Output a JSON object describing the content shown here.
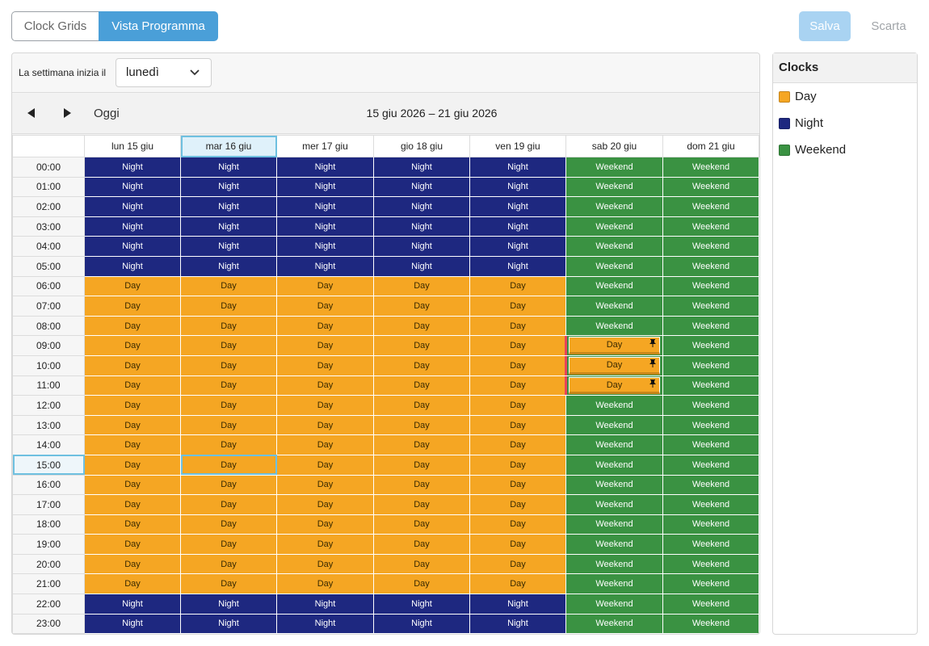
{
  "tabs": [
    {
      "label": "Clock Grids",
      "active": false
    },
    {
      "label": "Vista Programma",
      "active": true
    }
  ],
  "actions": {
    "save_label": "Salva",
    "discard_label": "Scarta"
  },
  "week_start": {
    "label": "La settimana inizia il",
    "value": "lunedì"
  },
  "nav": {
    "today_label": "Oggi",
    "range": "15 giu 2026 – 21 giu 2026"
  },
  "days": [
    "lun 15 giu",
    "mar 16 giu",
    "mer 17 giu",
    "gio 18 giu",
    "ven 19 giu",
    "sab 20 giu",
    "dom 21 giu"
  ],
  "hours": [
    "00:00",
    "01:00",
    "02:00",
    "03:00",
    "04:00",
    "05:00",
    "06:00",
    "07:00",
    "08:00",
    "09:00",
    "10:00",
    "11:00",
    "12:00",
    "13:00",
    "14:00",
    "15:00",
    "16:00",
    "17:00",
    "18:00",
    "19:00",
    "20:00",
    "21:00",
    "22:00",
    "23:00"
  ],
  "weekday_schedule": [
    "Night",
    "Night",
    "Night",
    "Night",
    "Night",
    "Night",
    "Day",
    "Day",
    "Day",
    "Day",
    "Day",
    "Day",
    "Day",
    "Day",
    "Day",
    "Day",
    "Day",
    "Day",
    "Day",
    "Day",
    "Day",
    "Day",
    "Night",
    "Night"
  ],
  "weekend_label": "Weekend",
  "overrides": [
    {
      "day": "sab 20 giu",
      "hour": "09:00",
      "clock": "Day",
      "pinned": true
    },
    {
      "day": "sab 20 giu",
      "hour": "10:00",
      "clock": "Day",
      "pinned": true
    },
    {
      "day": "sab 20 giu",
      "hour": "11:00",
      "clock": "Day",
      "pinned": true
    }
  ],
  "selected": {
    "day": "mar 16 giu",
    "hour": "15:00"
  },
  "legend": {
    "title": "Clocks",
    "items": [
      {
        "label": "Day",
        "color": "#f5a623"
      },
      {
        "label": "Night",
        "color": "#1e2880"
      },
      {
        "label": "Weekend",
        "color": "#3a9242"
      }
    ]
  }
}
